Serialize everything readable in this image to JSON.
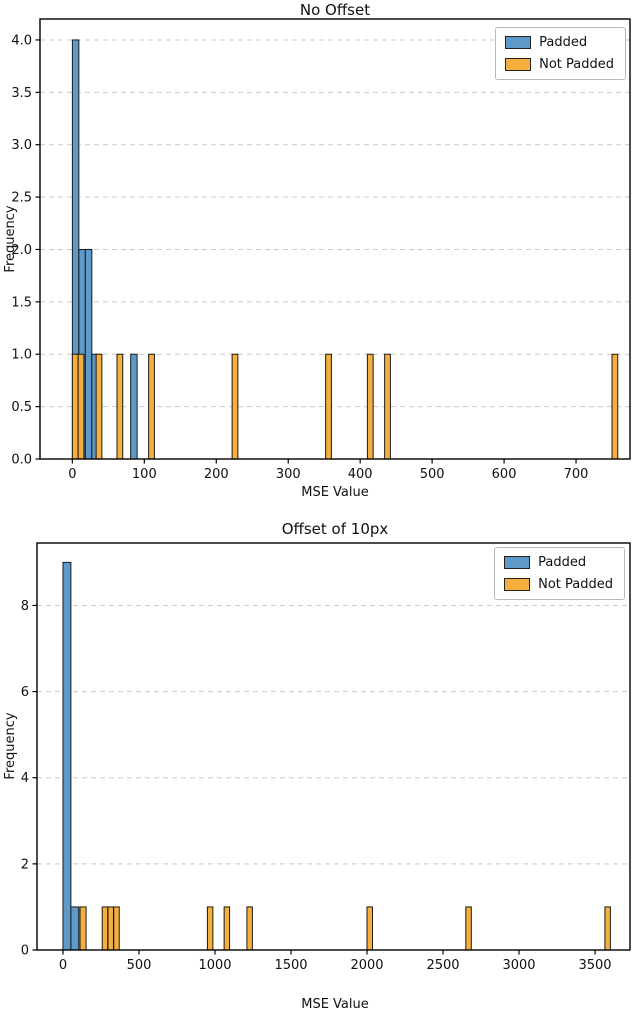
{
  "colors": {
    "padded": "#5d9ac8",
    "not_padded": "#f5af3e",
    "bar_edge": "#1a1a1a",
    "grid": "#c9c9c9",
    "axis": "#000000",
    "text": "#111111",
    "legend_border": "#b9b9b9"
  },
  "chart_data": [
    {
      "type": "bar",
      "title": "No Offset",
      "xlabel": "MSE Value",
      "ylabel": "Frequency",
      "xlim": [
        -45,
        775
      ],
      "ylim": [
        0,
        4.2
      ],
      "xticks": [
        0,
        100,
        200,
        300,
        400,
        500,
        600,
        700
      ],
      "yticks": [
        0,
        0.5,
        1,
        1.5,
        2,
        2.5,
        3,
        3.5,
        4
      ],
      "ytick_decimals": 1,
      "grid": "horizontal-dashed",
      "legend": {
        "position": "upper-right",
        "items": [
          {
            "label": "Padded",
            "color_key": "padded"
          },
          {
            "label": "Not Padded",
            "color_key": "not_padded"
          }
        ]
      },
      "series": [
        {
          "name": "Padded",
          "color_key": "padded",
          "bars": [
            {
              "x": 0,
              "w": 9,
              "h": 4
            },
            {
              "x": 9,
              "w": 9,
              "h": 2
            },
            {
              "x": 18,
              "w": 9,
              "h": 2
            },
            {
              "x": 27,
              "w": 9,
              "h": 1
            },
            {
              "x": 81,
              "w": 9,
              "h": 1
            }
          ]
        },
        {
          "name": "Not Padded",
          "color_key": "not_padded",
          "bars": [
            {
              "x": 0,
              "w": 8,
              "h": 1
            },
            {
              "x": 8,
              "w": 8,
              "h": 1
            },
            {
              "x": 33,
              "w": 8,
              "h": 1
            },
            {
              "x": 62,
              "w": 8,
              "h": 1
            },
            {
              "x": 106,
              "w": 8,
              "h": 1
            },
            {
              "x": 222,
              "w": 8,
              "h": 1
            },
            {
              "x": 352,
              "w": 8,
              "h": 1
            },
            {
              "x": 410,
              "w": 8,
              "h": 1
            },
            {
              "x": 434,
              "w": 8,
              "h": 1
            },
            {
              "x": 750,
              "w": 8,
              "h": 1
            }
          ]
        }
      ]
    },
    {
      "type": "bar",
      "title": "Offset of 10px",
      "xlabel": "MSE Value",
      "ylabel": "Frequency",
      "xlim": [
        -171,
        3730
      ],
      "ylim": [
        0,
        9.45
      ],
      "xticks": [
        0,
        500,
        1000,
        1500,
        2000,
        2500,
        3000,
        3500
      ],
      "yticks": [
        0,
        2,
        4,
        6,
        8
      ],
      "ytick_decimals": 0,
      "grid": "horizontal-dashed",
      "legend": {
        "position": "upper-right",
        "items": [
          {
            "label": "Padded",
            "color_key": "padded"
          },
          {
            "label": "Not Padded",
            "color_key": "not_padded"
          }
        ]
      },
      "series": [
        {
          "name": "Padded",
          "color_key": "padded",
          "bars": [
            {
              "x": 0,
              "w": 52,
              "h": 9
            },
            {
              "x": 52,
              "w": 52,
              "h": 1
            }
          ]
        },
        {
          "name": "Not Padded",
          "color_key": "not_padded",
          "bars": [
            {
              "x": 112,
              "w": 40,
              "h": 1
            },
            {
              "x": 258,
              "w": 36,
              "h": 1
            },
            {
              "x": 296,
              "w": 36,
              "h": 1
            },
            {
              "x": 334,
              "w": 36,
              "h": 1
            },
            {
              "x": 950,
              "w": 36,
              "h": 1
            },
            {
              "x": 1060,
              "w": 36,
              "h": 1
            },
            {
              "x": 1210,
              "w": 36,
              "h": 1
            },
            {
              "x": 2000,
              "w": 36,
              "h": 1
            },
            {
              "x": 2650,
              "w": 36,
              "h": 1
            },
            {
              "x": 3565,
              "w": 36,
              "h": 1
            }
          ]
        }
      ]
    }
  ]
}
